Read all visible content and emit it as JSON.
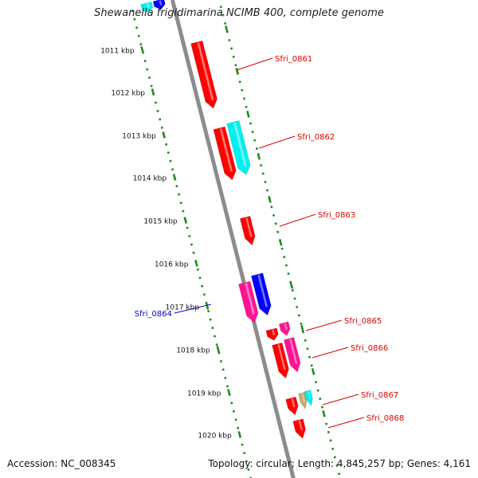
{
  "title": "Shewanella frigidimarina NCIMB 400, complete genome",
  "footer": {
    "accession": "Accession: NC_008345",
    "topology": "Topology: circular; Length: 4,845,257 bp; Genes: 4,161"
  },
  "colors": {
    "background": "#ffffff",
    "backbone": "#8c8c8c",
    "tick": "#228b22",
    "gene_red": "#ff0000",
    "gene_cyan": "#00f0f0",
    "gene_blue": "#0000ff",
    "gene_pink": "#ff1493",
    "gene_tan": "#c8aa6e",
    "label_red": "#dd0000",
    "label_blue": "#0000cc"
  },
  "ticks": [
    "1011 kbp",
    "1012 kbp",
    "1013 kbp",
    "1014 kbp",
    "1015 kbp",
    "1016 kbp",
    "1017 kbp",
    "1018 kbp",
    "1019 kbp",
    "1020 kbp"
  ],
  "gene_labels": [
    {
      "text": "Sfri_0861",
      "color": "label_red"
    },
    {
      "text": "Sfri_0862",
      "color": "label_red"
    },
    {
      "text": "Sfri_0863",
      "color": "label_red"
    },
    {
      "text": "Sfri_0864",
      "color": "label_blue"
    },
    {
      "text": "Sfri_0865",
      "color": "label_red"
    },
    {
      "text": "Sfri_0866",
      "color": "label_red"
    },
    {
      "text": "Sfri_0867",
      "color": "label_red"
    },
    {
      "text": "Sfri_0868",
      "color": "label_red"
    }
  ]
}
